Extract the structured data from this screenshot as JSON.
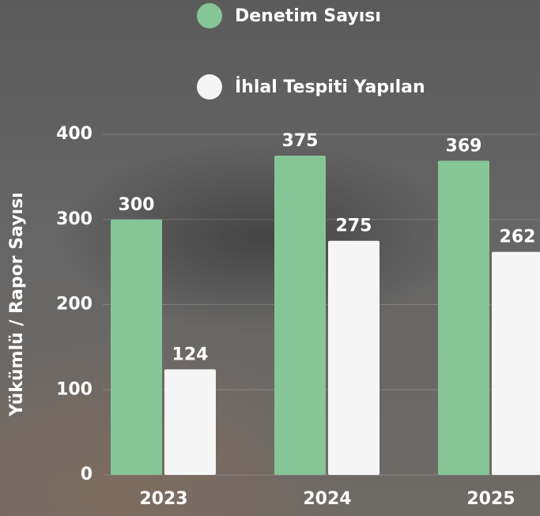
{
  "chart_data": {
    "type": "bar",
    "y_label": "Yükümlü / Rapor Sayısı",
    "categories": [
      "2023",
      "2024",
      "2025"
    ],
    "series": [
      {
        "name": "Denetim Sayısı",
        "color": "#86c596",
        "values": [
          300,
          375,
          369
        ]
      },
      {
        "name": "İhlal Tespiti Yapılan",
        "color": "#f5f5f5",
        "values": [
          124,
          275,
          262
        ]
      }
    ],
    "ylim": [
      0,
      400
    ],
    "yticks": [
      0,
      100,
      200,
      300,
      400
    ],
    "grid": true
  }
}
